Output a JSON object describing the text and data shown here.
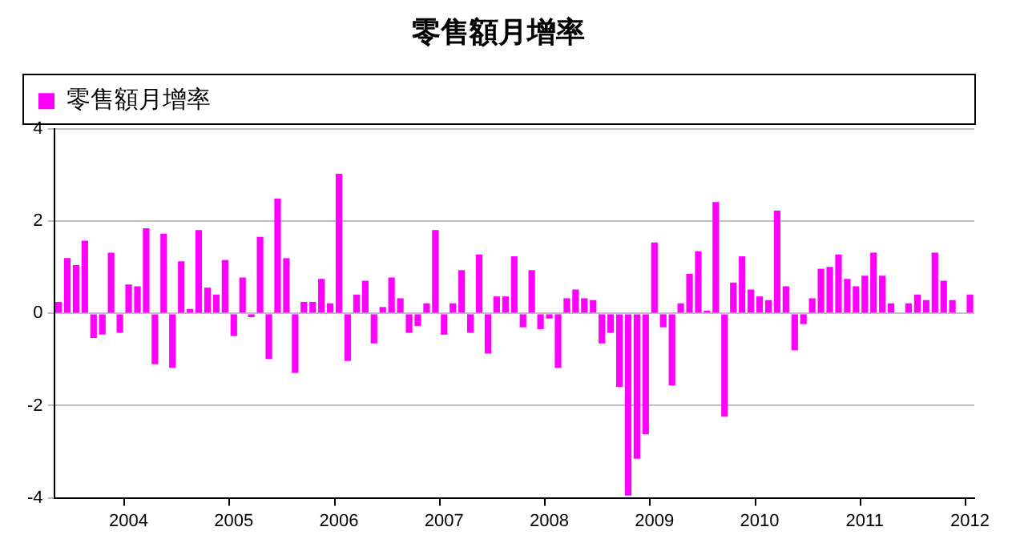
{
  "chart_data": {
    "type": "bar",
    "title": "零售額月增率",
    "categories": [
      null,
      null,
      null,
      null,
      null,
      null,
      null,
      null,
      "2004",
      null,
      null,
      null,
      null,
      null,
      null,
      null,
      null,
      null,
      null,
      null,
      "2005",
      null,
      null,
      null,
      null,
      null,
      null,
      null,
      null,
      null,
      null,
      null,
      "2006",
      null,
      null,
      null,
      null,
      null,
      null,
      null,
      null,
      null,
      null,
      null,
      "2007",
      null,
      null,
      null,
      null,
      null,
      null,
      null,
      null,
      null,
      null,
      null,
      "2008",
      null,
      null,
      null,
      null,
      null,
      null,
      null,
      null,
      null,
      null,
      null,
      "2009",
      null,
      null,
      null,
      null,
      null,
      null,
      null,
      null,
      null,
      null,
      null,
      "2010",
      null,
      null,
      null,
      null,
      null,
      null,
      null,
      null,
      null,
      null,
      null,
      "2011",
      null,
      null,
      null,
      null,
      null,
      null,
      null,
      null,
      null,
      null,
      null,
      "2012"
    ],
    "series": [
      {
        "name": "零售額月增率",
        "color": "#ff00ff",
        "values": [
          0.25,
          1.2,
          1.05,
          1.58,
          -0.53,
          -0.46,
          1.32,
          -0.42,
          0.63,
          0.59,
          1.85,
          -1.1,
          1.73,
          -1.18,
          1.13,
          0.1,
          1.81,
          0.56,
          0.41,
          1.16,
          -0.49,
          0.78,
          -0.08,
          1.66,
          -0.99,
          2.49,
          1.2,
          -1.29,
          0.25,
          0.25,
          0.75,
          0.22,
          3.03,
          -1.03,
          0.41,
          0.71,
          -0.65,
          0.14,
          0.78,
          0.33,
          -0.42,
          -0.27,
          0.22,
          1.81,
          -0.46,
          0.22,
          0.94,
          -0.42,
          1.28,
          -0.87,
          0.37,
          0.37,
          1.24,
          -0.3,
          0.94,
          -0.34,
          -0.11,
          -1.18,
          0.33,
          0.52,
          0.33,
          0.29,
          -0.65,
          -0.42,
          -1.59,
          -3.95,
          -3.15,
          -2.62,
          1.54,
          -0.3,
          -1.56,
          0.22,
          0.86,
          1.35,
          0.06,
          2.42,
          -2.24,
          0.67,
          1.24,
          0.52,
          0.37,
          0.29,
          2.23,
          0.59,
          -0.8,
          -0.23,
          0.33,
          0.97,
          1.01,
          1.28,
          0.75,
          0.59,
          0.82,
          1.32,
          0.82,
          0.22,
          null,
          0.22,
          0.41,
          0.29,
          1.32,
          0.71,
          0.29,
          null,
          0.41
        ]
      }
    ],
    "ylim": [
      -4,
      4
    ],
    "yticks": [
      -4,
      -2,
      0,
      2,
      4
    ],
    "grid": "y",
    "legend": "top left"
  }
}
